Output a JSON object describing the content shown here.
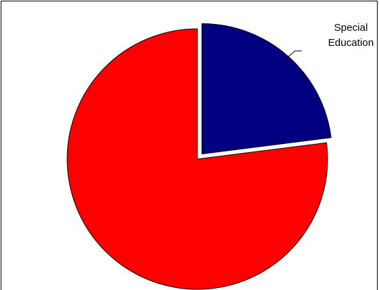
{
  "chart_data": {
    "type": "pie",
    "categories": [
      "Special Education",
      null
    ],
    "values": [
      23,
      77
    ],
    "colors": [
      "#000080",
      "#ff0000"
    ]
  }
}
